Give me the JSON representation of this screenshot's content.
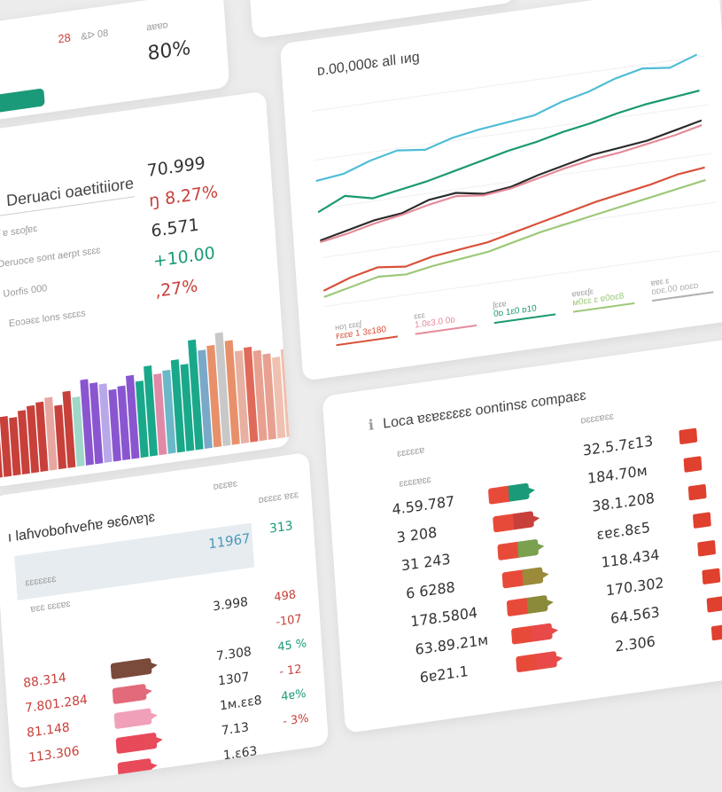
{
  "top_left": {
    "badge": "28",
    "badge_text": "&ᐅ 08",
    "label": "aɐɐᴅ",
    "value": "80%"
  },
  "summary": {
    "title": "Deruaci oaetitiiore",
    "rows": [
      {
        "label": "Ʃʃ ɐ sɛoʃɐɛ",
        "value": "70.999",
        "tone": "dark"
      },
      {
        "label": "Deruoce sont aerpt sɛɛɛ",
        "value": "ŋ 8.27%",
        "tone": "neg"
      },
      {
        "label": "Ʋorfis 000",
        "value": "6.571",
        "tone": "dark"
      },
      {
        "label": "Eoɔəɛɛ lons sɛɛɛs",
        "value": "+10.00",
        "tone": "pos"
      },
      {
        "label": "",
        "value": ",27%",
        "tone": "neg"
      }
    ],
    "bars": [
      {
        "v": 0.48,
        "c": "#c8403a"
      },
      {
        "v": 0.52,
        "c": "#c8403a"
      },
      {
        "v": 0.5,
        "c": "#c8403a"
      },
      {
        "v": 0.55,
        "c": "#c8403a"
      },
      {
        "v": 0.58,
        "c": "#c8403a"
      },
      {
        "v": 0.6,
        "c": "#c8403a"
      },
      {
        "v": 0.63,
        "c": "#e8a6a0"
      },
      {
        "v": 0.55,
        "c": "#c8403a"
      },
      {
        "v": 0.66,
        "c": "#c8403a"
      },
      {
        "v": 0.6,
        "c": "#9fd8c8"
      },
      {
        "v": 0.74,
        "c": "#8a56d0"
      },
      {
        "v": 0.7,
        "c": "#8a56d0"
      },
      {
        "v": 0.68,
        "c": "#b8a8e8"
      },
      {
        "v": 0.62,
        "c": "#8a56d0"
      },
      {
        "v": 0.64,
        "c": "#8a56d0"
      },
      {
        "v": 0.72,
        "c": "#8a56d0"
      },
      {
        "v": 0.66,
        "c": "#1aa88a"
      },
      {
        "v": 0.78,
        "c": "#1aa88a"
      },
      {
        "v": 0.7,
        "c": "#e08aa8"
      },
      {
        "v": 0.72,
        "c": "#6ab8c8"
      },
      {
        "v": 0.8,
        "c": "#1aa88a"
      },
      {
        "v": 0.75,
        "c": "#1aa88a"
      },
      {
        "v": 0.95,
        "c": "#1aa88a"
      },
      {
        "v": 0.85,
        "c": "#7aa8c8"
      },
      {
        "v": 0.88,
        "c": "#e8906a"
      },
      {
        "v": 0.98,
        "c": "#c8c8c8"
      },
      {
        "v": 0.9,
        "c": "#e8906a"
      },
      {
        "v": 0.8,
        "c": "#e8b0a0"
      },
      {
        "v": 0.82,
        "c": "#e06a5a"
      },
      {
        "v": 0.78,
        "c": "#e8a090"
      },
      {
        "v": 0.74,
        "c": "#e8a090"
      },
      {
        "v": 0.7,
        "c": "#f0c0b0"
      },
      {
        "v": 0.76,
        "c": "#f0c0b0"
      }
    ]
  },
  "line_chart": {
    "title": "ᴅ.00,000ɛ all ıᴎg",
    "series": [
      {
        "name": "",
        "color": "#4fbcd6",
        "values": [
          40,
          42,
          48,
          52,
          50,
          55,
          58,
          60,
          62,
          68,
          72,
          78,
          82,
          80,
          86
        ]
      },
      {
        "name": "",
        "color": "#1a9a6c",
        "values": [
          20,
          28,
          24,
          27,
          30,
          34,
          38,
          42,
          45,
          49,
          52,
          56,
          59,
          61,
          63
        ]
      },
      {
        "name": "",
        "color": "#2b2b2b",
        "values": [
          2,
          6,
          10,
          12,
          18,
          20,
          17,
          19,
          24,
          28,
          32,
          34,
          36,
          40,
          44
        ]
      },
      {
        "name": "",
        "color": "#e58a9a",
        "values": [
          1,
          4,
          8,
          11,
          15,
          18,
          16,
          18,
          22,
          26,
          29,
          31,
          34,
          37,
          41
        ]
      },
      {
        "name": "",
        "color": "#d9503a",
        "values": [
          -30,
          -24,
          -20,
          -22,
          -18,
          -16,
          -14,
          -10,
          -6,
          -2,
          2,
          5,
          8,
          12,
          14
        ]
      },
      {
        "name": "",
        "color": "#9cc878",
        "values": [
          -34,
          -30,
          -26,
          -27,
          -24,
          -22,
          -20,
          -16,
          -12,
          -9,
          -6,
          -3,
          0,
          3,
          6
        ]
      }
    ],
    "legend": [
      {
        "label": "ʜoɿ ɛɛɛʃ",
        "value": "ꜰɛɛɐ 1 3ɛ180",
        "color": "#d9503a"
      },
      {
        "label": "ɛɛɛ",
        "value": "1.0ɛ3.0 0ᴅ",
        "color": "#e58a9a"
      },
      {
        "label": "ʃɛɛɐ",
        "value": "0ᴅ 1ɛ0 ᴅ10",
        "color": "#1a9a6c"
      },
      {
        "label": "ɐɐɛɛʃɛ",
        "value": "ᴍ0ɛɛ ɛ ɐ0ᴅɛ8",
        "color": "#9cc878"
      },
      {
        "label": "ɐɐɛ ɛ",
        "value": "ᴅᴅɛ.00 ᴅᴅɛᴅ",
        "color": "#b0b0b0"
      }
    ]
  },
  "bottom_left": {
    "title": "ı laɦvoboɦveɦɐ ɘɛ6ʌɐɿɛ",
    "col1": "ᴅɛɛɐɛ",
    "col2": "ᴅɛɛɛɛ ɐɛɛ",
    "header_values": [
      "11967",
      "313"
    ],
    "subheaders": [
      "ɛɛɛɛɛɛɛ",
      "ɐɛɛ ɛɛɛɐɛ"
    ],
    "rows": [
      {
        "a": "",
        "b": "3.998",
        "c": "498"
      },
      {
        "a": "",
        "b": "",
        "c": "-107"
      },
      {
        "a": "88.314",
        "b": "7.308",
        "c": "45 %"
      },
      {
        "a": "7.801.284",
        "b": "1307",
        "c": "- 12"
      },
      {
        "a": "81.148",
        "b": "1ᴍ.ɛɛ8",
        "c": "4ɐ%"
      },
      {
        "a": "113.306",
        "b": "7.13",
        "c": "- 3%"
      },
      {
        "a": "",
        "b": "1.ɛ63",
        "c": ""
      }
    ]
  },
  "bottom_right": {
    "title": "Loca ɐɛɐɛɛɛɛɛ oontinsɛ compaɛɛ",
    "col_left": "ɛɛɛɛɛɐ",
    "col_right": "ᴅɛɛɛɐɛɛ",
    "sub_left": "ɛɛɛɛɐɛɛ",
    "left_values": [
      "4.59.787",
      "3 208",
      "31 243",
      "6 6288",
      "178.5804",
      "63.89.21ᴍ",
      "6ɐ21.1"
    ],
    "right_values": [
      "32.5.7ɛ13",
      "184.70ᴍ",
      "38.1.208",
      "ɛɐɛ.8ɛ5",
      "118.434",
      "170.302",
      "64.563",
      "2.306"
    ]
  }
}
